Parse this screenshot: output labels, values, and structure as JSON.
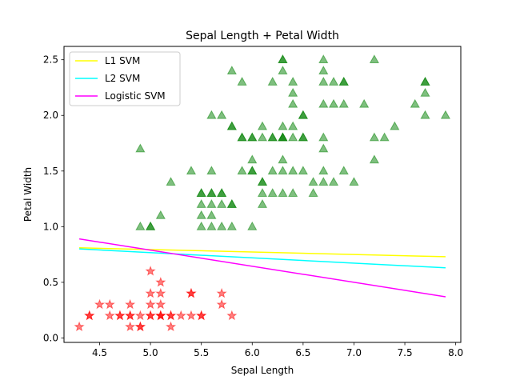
{
  "chart_data": {
    "type": "scatter",
    "title": "Sepal Length + Petal Width",
    "xlabel": "Sepal Length",
    "ylabel": "Petal Width",
    "xlim": [
      4.15,
      8.05
    ],
    "ylim": [
      -0.04,
      2.62
    ],
    "xticks": [
      "4.5",
      "5.0",
      "5.5",
      "6.0",
      "6.5",
      "7.0",
      "7.5",
      "8.0"
    ],
    "yticks": [
      "0.0",
      "0.5",
      "1.0",
      "1.5",
      "2.0",
      "2.5"
    ],
    "grid": false,
    "legend_position": "top-left",
    "scatter_series": [
      {
        "marker": "star",
        "color": "#ff0000",
        "points": [
          [
            4.3,
            0.1
          ],
          [
            4.4,
            0.2
          ],
          [
            4.5,
            0.3
          ],
          [
            4.6,
            0.2
          ],
          [
            4.6,
            0.3
          ],
          [
            4.7,
            0.2
          ],
          [
            4.8,
            0.1
          ],
          [
            4.8,
            0.2
          ],
          [
            4.8,
            0.3
          ],
          [
            4.9,
            0.1
          ],
          [
            4.9,
            0.2
          ],
          [
            5.0,
            0.2
          ],
          [
            5.0,
            0.3
          ],
          [
            5.0,
            0.4
          ],
          [
            5.0,
            0.6
          ],
          [
            5.1,
            0.2
          ],
          [
            5.1,
            0.3
          ],
          [
            5.1,
            0.4
          ],
          [
            5.1,
            0.5
          ],
          [
            5.2,
            0.1
          ],
          [
            5.2,
            0.2
          ],
          [
            5.3,
            0.2
          ],
          [
            5.4,
            0.2
          ],
          [
            5.4,
            0.4
          ],
          [
            5.5,
            0.2
          ],
          [
            5.7,
            0.3
          ],
          [
            5.7,
            0.4
          ],
          [
            5.8,
            0.2
          ],
          [
            4.4,
            0.2
          ],
          [
            4.9,
            0.1
          ],
          [
            5.0,
            0.2
          ],
          [
            5.1,
            0.2
          ],
          [
            4.7,
            0.2
          ],
          [
            5.4,
            0.4
          ],
          [
            5.1,
            0.2
          ],
          [
            5.5,
            0.2
          ],
          [
            4.8,
            0.2
          ],
          [
            5.2,
            0.2
          ]
        ]
      },
      {
        "marker": "triangle",
        "color": "#008000",
        "points": [
          [
            4.9,
            1.0
          ],
          [
            4.9,
            1.7
          ],
          [
            5.0,
            1.0
          ],
          [
            5.0,
            1.0
          ],
          [
            5.1,
            1.1
          ],
          [
            5.2,
            1.4
          ],
          [
            5.4,
            1.5
          ],
          [
            5.5,
            1.0
          ],
          [
            5.5,
            1.1
          ],
          [
            5.5,
            1.2
          ],
          [
            5.5,
            1.3
          ],
          [
            5.5,
            1.3
          ],
          [
            5.6,
            1.0
          ],
          [
            5.6,
            1.1
          ],
          [
            5.6,
            1.3
          ],
          [
            5.6,
            1.3
          ],
          [
            5.6,
            1.5
          ],
          [
            5.6,
            2.0
          ],
          [
            5.6,
            1.2
          ],
          [
            5.7,
            1.0
          ],
          [
            5.7,
            1.3
          ],
          [
            5.7,
            1.3
          ],
          [
            5.7,
            1.2
          ],
          [
            5.7,
            2.0
          ],
          [
            5.8,
            1.0
          ],
          [
            5.8,
            1.2
          ],
          [
            5.8,
            1.2
          ],
          [
            5.8,
            1.9
          ],
          [
            5.8,
            1.9
          ],
          [
            5.8,
            2.4
          ],
          [
            5.9,
            1.5
          ],
          [
            5.9,
            1.8
          ],
          [
            5.9,
            1.8
          ],
          [
            5.9,
            2.3
          ],
          [
            6.0,
            1.0
          ],
          [
            6.0,
            1.5
          ],
          [
            6.0,
            1.6
          ],
          [
            6.0,
            1.8
          ],
          [
            6.0,
            1.5
          ],
          [
            6.1,
            1.3
          ],
          [
            6.1,
            1.4
          ],
          [
            6.1,
            1.4
          ],
          [
            6.1,
            1.2
          ],
          [
            6.1,
            1.8
          ],
          [
            6.1,
            1.9
          ],
          [
            6.2,
            1.3
          ],
          [
            6.2,
            1.5
          ],
          [
            6.2,
            1.8
          ],
          [
            6.2,
            2.3
          ],
          [
            6.3,
            1.5
          ],
          [
            6.3,
            1.3
          ],
          [
            6.3,
            1.6
          ],
          [
            6.3,
            1.8
          ],
          [
            6.3,
            1.8
          ],
          [
            6.3,
            1.9
          ],
          [
            6.3,
            2.4
          ],
          [
            6.3,
            2.5
          ],
          [
            6.4,
            1.3
          ],
          [
            6.4,
            1.5
          ],
          [
            6.4,
            1.8
          ],
          [
            6.4,
            1.9
          ],
          [
            6.4,
            2.1
          ],
          [
            6.4,
            2.2
          ],
          [
            6.4,
            2.3
          ],
          [
            6.5,
            1.5
          ],
          [
            6.5,
            1.8
          ],
          [
            6.5,
            2.0
          ],
          [
            6.5,
            2.0
          ],
          [
            6.6,
            1.3
          ],
          [
            6.6,
            1.4
          ],
          [
            6.7,
            1.4
          ],
          [
            6.7,
            1.5
          ],
          [
            6.7,
            1.7
          ],
          [
            6.7,
            1.8
          ],
          [
            6.7,
            2.1
          ],
          [
            6.7,
            2.3
          ],
          [
            6.7,
            2.4
          ],
          [
            6.7,
            2.5
          ],
          [
            6.8,
            1.4
          ],
          [
            6.8,
            2.1
          ],
          [
            6.8,
            2.3
          ],
          [
            6.9,
            1.5
          ],
          [
            6.9,
            2.1
          ],
          [
            6.9,
            2.3
          ],
          [
            6.9,
            2.3
          ],
          [
            7.0,
            1.4
          ],
          [
            7.1,
            2.1
          ],
          [
            7.2,
            1.6
          ],
          [
            7.2,
            1.8
          ],
          [
            7.2,
            2.5
          ],
          [
            7.3,
            1.8
          ],
          [
            7.4,
            1.9
          ],
          [
            7.6,
            2.1
          ],
          [
            7.7,
            2.0
          ],
          [
            7.7,
            2.2
          ],
          [
            7.7,
            2.3
          ],
          [
            7.7,
            2.3
          ],
          [
            7.9,
            2.0
          ],
          [
            6.3,
            2.5
          ],
          [
            6.5,
            1.8
          ],
          [
            6.3,
            1.8
          ],
          [
            6.2,
            1.8
          ],
          [
            6.0,
            1.8
          ]
        ]
      }
    ],
    "line_series": [
      {
        "name": "L1 SVM",
        "color": "#ffff00",
        "x": [
          4.3,
          7.9
        ],
        "y": [
          0.81,
          0.73
        ]
      },
      {
        "name": "L2 SVM",
        "color": "#00ffff",
        "x": [
          4.3,
          7.9
        ],
        "y": [
          0.8,
          0.63
        ]
      },
      {
        "name": "Logistic SVM",
        "color": "#ff00ff",
        "x": [
          4.3,
          7.9
        ],
        "y": [
          0.89,
          0.37
        ]
      }
    ]
  }
}
